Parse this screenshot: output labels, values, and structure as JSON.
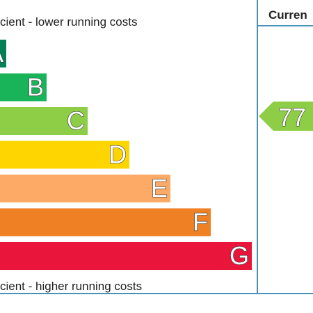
{
  "chart_data": {
    "type": "bar",
    "top_caption": "cient - lower running costs",
    "bottom_caption": "cient - higher running costs",
    "current_header": "Curren",
    "categories": [
      "A",
      "B",
      "C",
      "D",
      "E",
      "F",
      "G"
    ],
    "colors": {
      "A": "#008054",
      "B": "#19b459",
      "C": "#8dce46",
      "D": "#ffd500",
      "E": "#fcaa65",
      "F": "#ef8023",
      "G": "#e9153b"
    },
    "current_rating": {
      "value": "77",
      "band": "C",
      "color": "#8dce46"
    },
    "frame_color": "#4a90b8"
  }
}
